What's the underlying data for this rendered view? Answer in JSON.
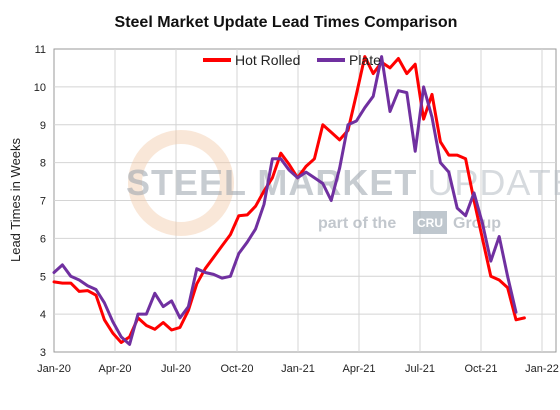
{
  "chart_data": {
    "type": "line",
    "title": "Steel Market Update Lead Times Comparison",
    "ylabel": "Lead Times in Weeks",
    "xlabel": "",
    "ylim": [
      3,
      11
    ],
    "yticks": [
      3,
      4,
      5,
      6,
      7,
      8,
      9,
      10,
      11
    ],
    "xtick_labels": [
      "Jan-20",
      "Apr-20",
      "Jul-20",
      "Oct-20",
      "Jan-21",
      "Apr-21",
      "Jul-21",
      "Oct-21",
      "Jan-22"
    ],
    "grid": true,
    "legend_position": "top-center",
    "watermark": {
      "line1_bold": "STEEL MARKET",
      "line1_light": "UPDATE",
      "line2_pre": "part of the",
      "line2_badge": "CRU",
      "line2_post": "Group"
    },
    "series": [
      {
        "name": "Hot Rolled",
        "color": "#ff0000",
        "values": [
          4.85,
          4.82,
          4.82,
          4.6,
          4.62,
          4.5,
          3.85,
          3.5,
          3.25,
          3.4,
          3.9,
          3.7,
          3.6,
          3.78,
          3.58,
          3.65,
          4.1,
          4.8,
          5.2,
          5.5,
          5.8,
          6.1,
          6.6,
          6.62,
          6.85,
          7.25,
          7.6,
          8.25,
          7.95,
          7.6,
          7.9,
          8.1,
          9.0,
          8.8,
          8.6,
          8.85,
          9.8,
          10.8,
          10.35,
          10.65,
          10.5,
          10.75,
          10.35,
          10.6,
          9.15,
          9.8,
          8.55,
          8.2,
          8.2,
          8.1,
          7.0,
          6.0,
          5.0,
          4.9,
          4.7,
          3.85,
          3.9
        ]
      },
      {
        "name": "Plate",
        "color": "#7030a0",
        "values": [
          5.1,
          5.3,
          5.0,
          4.9,
          4.75,
          4.65,
          4.3,
          3.8,
          3.4,
          3.2,
          4.0,
          4.0,
          4.55,
          4.2,
          4.35,
          3.9,
          4.2,
          5.2,
          5.1,
          5.05,
          4.95,
          5.0,
          5.6,
          5.9,
          6.25,
          6.9,
          8.1,
          8.1,
          7.8,
          7.6,
          7.75,
          7.6,
          7.45,
          7.0,
          7.85,
          9.0,
          9.1,
          9.45,
          9.75,
          10.8,
          9.35,
          9.9,
          9.85,
          8.3,
          10.0,
          9.2,
          8.0,
          7.75,
          6.8,
          6.6,
          7.2,
          6.4,
          5.4,
          6.05,
          5.0,
          4.05
        ]
      }
    ]
  }
}
